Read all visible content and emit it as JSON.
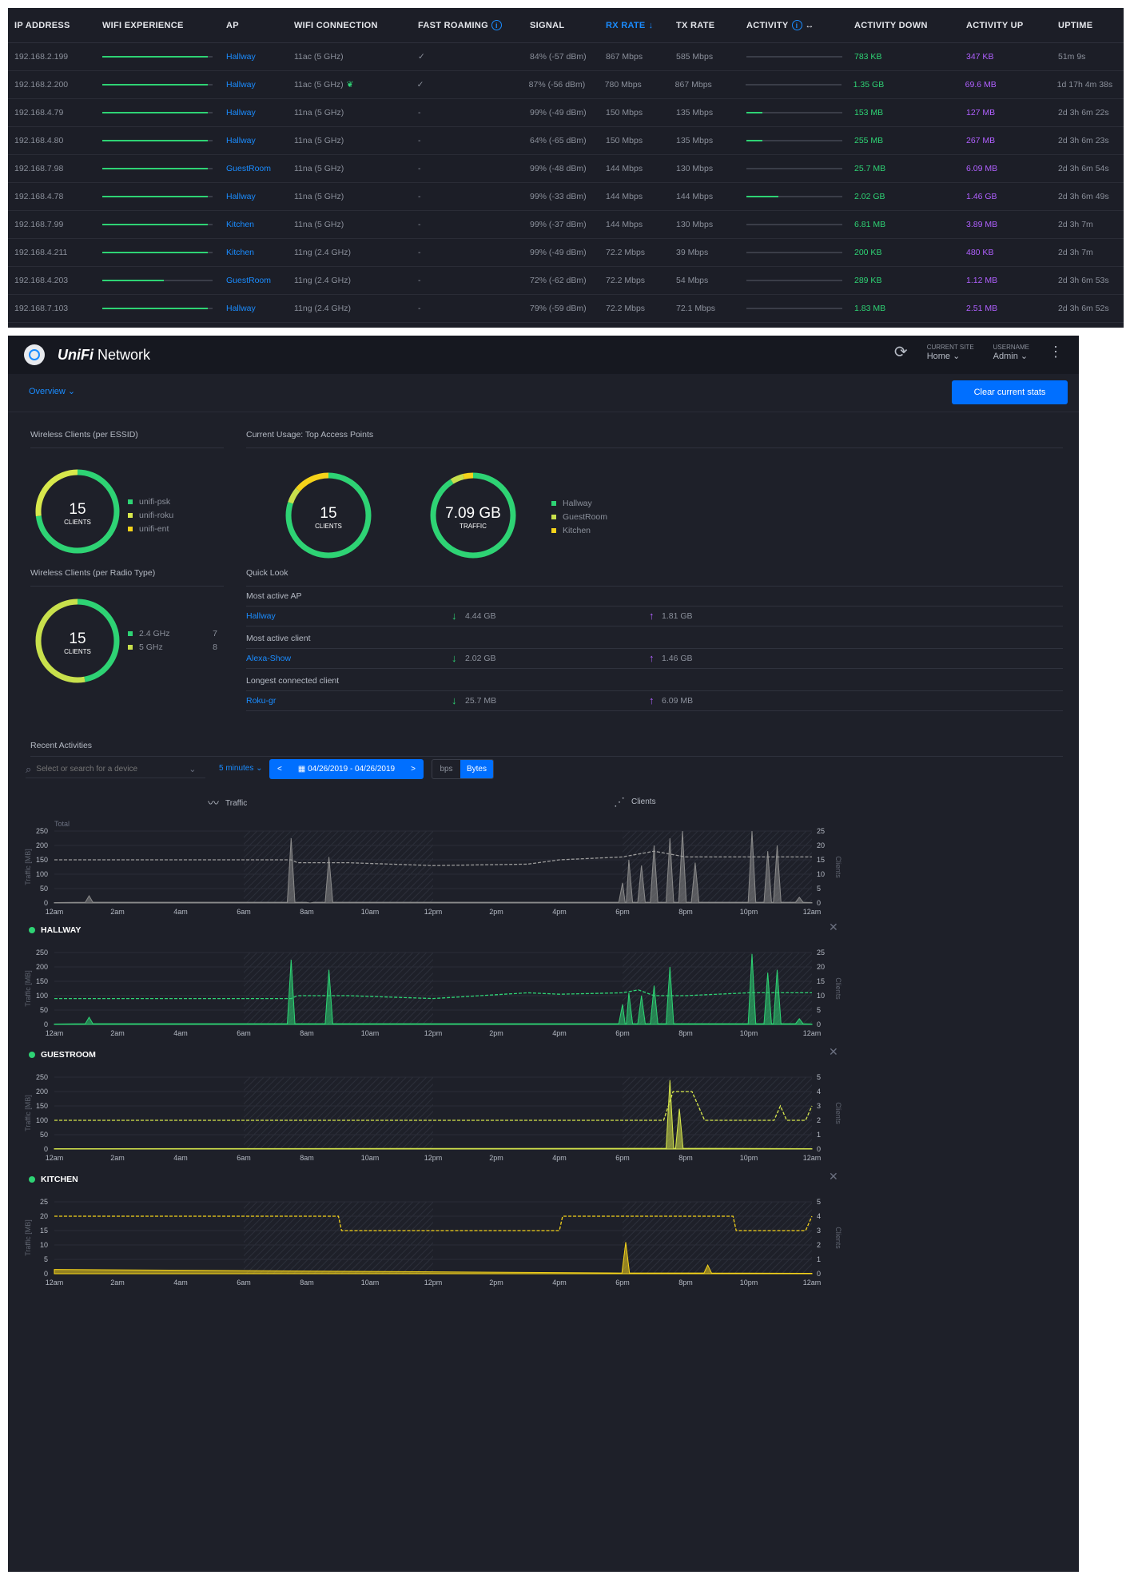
{
  "table": {
    "headers": {
      "ip": "IP ADDRESS",
      "exp": "WIFI EXPERIENCE",
      "ap": "AP",
      "con": "WIFI CONNECTION",
      "fr": "FAST ROAMING",
      "sig": "SIGNAL",
      "rx": "RX RATE",
      "tx": "TX RATE",
      "act": "ACTIVITY",
      "dn": "ACTIVITY DOWN",
      "up": "ACTIVITY UP",
      "upt": "UPTIME"
    },
    "rows": [
      {
        "ip": "192.168.2.199",
        "exp": 0.96,
        "ap": "Hallway",
        "con": "11ac (5 GHz)",
        "fr": "✓",
        "sig": "84% (-57 dBm)",
        "rx": "867 Mbps",
        "tx": "585 Mbps",
        "act": 0.0,
        "dn": "783 KB",
        "up": "347 KB",
        "upt": "51m 9s"
      },
      {
        "ip": "192.168.2.200",
        "exp": 0.96,
        "ap": "Hallway",
        "con": "11ac (5 GHz)",
        "fr": "✓",
        "sig": "87% (-56 dBm)",
        "rx": "780 Mbps",
        "tx": "867 Mbps",
        "act": 0.0,
        "dn": "1.35 GB",
        "up": "69.6 MB",
        "upt": "1d 17h 4m 38s"
      },
      {
        "ip": "192.168.4.79",
        "exp": 0.96,
        "ap": "Hallway",
        "con": "11na (5 GHz)",
        "fr": "-",
        "sig": "99% (-49 dBm)",
        "rx": "150 Mbps",
        "tx": "135 Mbps",
        "act": 0.17,
        "dn": "153 MB",
        "up": "127 MB",
        "upt": "2d 3h 6m 22s"
      },
      {
        "ip": "192.168.4.80",
        "exp": 0.96,
        "ap": "Hallway",
        "con": "11na (5 GHz)",
        "fr": "-",
        "sig": "64% (-65 dBm)",
        "rx": "150 Mbps",
        "tx": "135 Mbps",
        "act": 0.17,
        "dn": "255 MB",
        "up": "267 MB",
        "upt": "2d 3h 6m 23s"
      },
      {
        "ip": "192.168.7.98",
        "exp": 0.96,
        "ap": "GuestRoom",
        "con": "11na (5 GHz)",
        "fr": "-",
        "sig": "99% (-48 dBm)",
        "rx": "144 Mbps",
        "tx": "130 Mbps",
        "act": 0.0,
        "dn": "25.7 MB",
        "up": "6.09 MB",
        "upt": "2d 3h 6m 54s"
      },
      {
        "ip": "192.168.4.78",
        "exp": 0.96,
        "ap": "Hallway",
        "con": "11na (5 GHz)",
        "fr": "-",
        "sig": "99% (-33 dBm)",
        "rx": "144 Mbps",
        "tx": "144 Mbps",
        "act": 0.33,
        "dn": "2.02 GB",
        "up": "1.46 GB",
        "upt": "2d 3h 6m 49s"
      },
      {
        "ip": "192.168.7.99",
        "exp": 0.96,
        "ap": "Kitchen",
        "con": "11na (5 GHz)",
        "fr": "-",
        "sig": "99% (-37 dBm)",
        "rx": "144 Mbps",
        "tx": "130 Mbps",
        "act": 0.0,
        "dn": "6.81 MB",
        "up": "3.89 MB",
        "upt": "2d 3h 7m"
      },
      {
        "ip": "192.168.4.211",
        "exp": 0.96,
        "ap": "Kitchen",
        "con": "11ng (2.4 GHz)",
        "fr": "-",
        "sig": "99% (-49 dBm)",
        "rx": "72.2 Mbps",
        "tx": "39 Mbps",
        "act": 0.0,
        "dn": "200 KB",
        "up": "480 KB",
        "upt": "2d 3h 7m"
      },
      {
        "ip": "192.168.4.203",
        "exp": 0.56,
        "ap": "GuestRoom",
        "con": "11ng (2.4 GHz)",
        "fr": "-",
        "sig": "72% (-62 dBm)",
        "rx": "72.2 Mbps",
        "tx": "54 Mbps",
        "act": 0.0,
        "dn": "289 KB",
        "up": "1.12 MB",
        "upt": "2d 3h 6m 53s"
      },
      {
        "ip": "192.168.7.103",
        "exp": 0.96,
        "ap": "Hallway",
        "con": "11ng (2.4 GHz)",
        "fr": "-",
        "sig": "79% (-59 dBm)",
        "rx": "72.2 Mbps",
        "tx": "72.1 Mbps",
        "act": 0.0,
        "dn": "1.83 MB",
        "up": "2.51 MB",
        "upt": "2d 3h 6m 52s"
      }
    ]
  },
  "app": {
    "brand_bold": "UniFi",
    "brand_rest": " Network",
    "site_label": "CURRENT SITE",
    "site_value": "Home",
    "user_label": "USERNAME",
    "user_value": "Admin",
    "overview": "Overview",
    "clear_button": "Clear current stats"
  },
  "sections": {
    "essid_title": "Wireless Clients (per ESSID)",
    "usage_title": "Current Usage: Top Access Points",
    "radio_title": "Wireless Clients (per Radio Type)",
    "quick_title": "Quick Look"
  },
  "donuts": {
    "essid": {
      "num": "15",
      "label": "CLIENTS",
      "segments": [
        0.73,
        0.27
      ],
      "colors": [
        "#2ed374",
        "#d8e84c"
      ]
    },
    "ap_clients": {
      "num": "15",
      "label": "CLIENTS",
      "segments": [
        0.8,
        0.06,
        0.14
      ],
      "colors": [
        "#2ed374",
        "#c8e04c",
        "#f5d31a"
      ]
    },
    "traffic": {
      "num": "7.09 GB",
      "label": "TRAFFIC",
      "segments": [
        0.91,
        0.05,
        0.04
      ],
      "colors": [
        "#2ed374",
        "#c8e04c",
        "#f5d31a"
      ]
    },
    "radio": {
      "num": "15",
      "label": "CLIENTS",
      "segments": [
        0.47,
        0.53
      ],
      "colors": [
        "#2ed374",
        "#c8e04c"
      ]
    }
  },
  "legends": {
    "essid": [
      {
        "label": "unifi-psk",
        "color": "#2ed374"
      },
      {
        "label": "unifi-roku",
        "color": "#d8e84c"
      },
      {
        "label": "unifi-ent",
        "color": "#f5d31a"
      }
    ],
    "ap": [
      {
        "label": "Hallway",
        "color": "#2ed374"
      },
      {
        "label": "GuestRoom",
        "color": "#c8e04c"
      },
      {
        "label": "Kitchen",
        "color": "#f5d31a"
      }
    ],
    "radio": [
      {
        "label": "2.4 GHz",
        "value": "7",
        "color": "#2ed374"
      },
      {
        "label": "5 GHz",
        "value": "8",
        "color": "#c8e04c"
      }
    ]
  },
  "quick": [
    {
      "title": "Most active AP",
      "name": "Hallway",
      "down": "4.44 GB",
      "up": "1.81 GB"
    },
    {
      "title": "Most active client",
      "name": "Alexa-Show",
      "down": "2.02 GB",
      "up": "1.46 GB"
    },
    {
      "title": "Longest connected client",
      "name": "Roku-gr",
      "down": "25.7 MB",
      "up": "6.09 MB"
    }
  ],
  "recent": {
    "title": "Recent Activities",
    "search_placeholder": "Select or search for a device",
    "interval": "5 minutes",
    "date_range": "04/26/2019 - 04/26/2019",
    "prev": "<",
    "next": ">",
    "unit_bps": "bps",
    "unit_bytes": "Bytes",
    "tab_traffic": "Traffic",
    "tab_clients": "Clients"
  },
  "chart_data": [
    {
      "type": "area",
      "title": "Total",
      "ylabel": "Traffic [MB]",
      "y2label": "Clients",
      "x": [
        "12am",
        "2am",
        "4am",
        "6am",
        "8am",
        "10am",
        "12pm",
        "2pm",
        "4pm",
        "6pm",
        "8pm",
        "10pm",
        "12am"
      ],
      "ylim": [
        0,
        250
      ],
      "yticks": [
        0,
        50,
        100,
        150,
        200,
        250
      ],
      "y2lim": [
        0,
        25
      ],
      "y2ticks": [
        0,
        5,
        10,
        15,
        20,
        25
      ],
      "color": "#8b8b8b",
      "traffic_peaks": [
        [
          1.1,
          25
        ],
        [
          7.5,
          225
        ],
        [
          8.1,
          0
        ],
        [
          8.7,
          160
        ],
        [
          18,
          70
        ],
        [
          18.2,
          150
        ],
        [
          18.6,
          130
        ],
        [
          19,
          200
        ],
        [
          19.5,
          225
        ],
        [
          19.9,
          250
        ],
        [
          20.3,
          140
        ],
        [
          22.1,
          250
        ],
        [
          22.6,
          180
        ],
        [
          22.9,
          200
        ],
        [
          23.6,
          20
        ]
      ],
      "clients": [
        [
          0,
          15
        ],
        [
          7.5,
          15
        ],
        [
          7.7,
          14
        ],
        [
          9.3,
          14
        ],
        [
          12,
          13
        ],
        [
          15,
          13.5
        ],
        [
          16,
          15
        ],
        [
          18,
          16
        ],
        [
          18.5,
          17
        ],
        [
          19,
          18
        ],
        [
          20,
          16
        ],
        [
          22,
          16
        ],
        [
          24,
          16
        ]
      ]
    },
    {
      "type": "area",
      "title": "HALLWAY",
      "ylabel": "Traffic [MB]",
      "y2label": "Clients",
      "x": [
        "12am",
        "2am",
        "4am",
        "6am",
        "8am",
        "10am",
        "12pm",
        "2pm",
        "4pm",
        "6pm",
        "8pm",
        "10pm",
        "12am"
      ],
      "ylim": [
        0,
        250
      ],
      "yticks": [
        0,
        50,
        100,
        150,
        200,
        250
      ],
      "y2lim": [
        0,
        25
      ],
      "y2ticks": [
        0,
        5,
        10,
        15,
        20,
        25
      ],
      "color": "#2ed374",
      "traffic_peaks": [
        [
          1.1,
          25
        ],
        [
          7.5,
          225
        ],
        [
          8.7,
          190
        ],
        [
          18,
          70
        ],
        [
          18.2,
          110
        ],
        [
          18.6,
          100
        ],
        [
          19,
          135
        ],
        [
          19.5,
          200
        ],
        [
          22.1,
          245
        ],
        [
          22.6,
          180
        ],
        [
          22.9,
          190
        ],
        [
          23.6,
          20
        ]
      ],
      "clients": [
        [
          0,
          9
        ],
        [
          7.5,
          9
        ],
        [
          7.7,
          10
        ],
        [
          9.3,
          10
        ],
        [
          12,
          9
        ],
        [
          15,
          11
        ],
        [
          16,
          10.5
        ],
        [
          18,
          11
        ],
        [
          18.5,
          12
        ],
        [
          19,
          10
        ],
        [
          20,
          10
        ],
        [
          22,
          11
        ],
        [
          24,
          11
        ]
      ]
    },
    {
      "type": "area",
      "title": "GUESTROOM",
      "ylabel": "Traffic [MB]",
      "y2label": "Clients",
      "x": [
        "12am",
        "2am",
        "4am",
        "6am",
        "8am",
        "10am",
        "12pm",
        "2pm",
        "4pm",
        "6pm",
        "8pm",
        "10pm",
        "12am"
      ],
      "ylim": [
        0,
        250
      ],
      "yticks": [
        0,
        50,
        100,
        150,
        200,
        250
      ],
      "y2lim": [
        0,
        5
      ],
      "y2ticks": [
        0,
        1,
        2,
        3,
        4,
        5
      ],
      "color": "#d8e84c",
      "traffic_peaks": [
        [
          19.5,
          240
        ],
        [
          19.8,
          140
        ]
      ],
      "clients": [
        [
          0,
          2
        ],
        [
          19.3,
          2
        ],
        [
          19.6,
          4
        ],
        [
          20.2,
          4
        ],
        [
          20.4,
          3
        ],
        [
          20.6,
          2
        ],
        [
          22.8,
          2
        ],
        [
          23,
          3
        ],
        [
          23.2,
          2
        ],
        [
          23.8,
          2
        ],
        [
          24,
          3
        ]
      ]
    },
    {
      "type": "area",
      "title": "KITCHEN",
      "ylabel": "Traffic [MB]",
      "y2label": "Clients",
      "x": [
        "12am",
        "2am",
        "4am",
        "6am",
        "8am",
        "10am",
        "12pm",
        "2pm",
        "4pm",
        "6pm",
        "8pm",
        "10pm",
        "12am"
      ],
      "ylim": [
        0,
        25
      ],
      "yticks": [
        0,
        5,
        10,
        15,
        20,
        25
      ],
      "y2lim": [
        0,
        5
      ],
      "y2ticks": [
        0,
        1,
        2,
        3,
        4,
        5
      ],
      "color": "#f5d31a",
      "traffic_peaks": [
        [
          18.1,
          11
        ],
        [
          20.7,
          3
        ]
      ],
      "clients": [
        [
          0,
          4
        ],
        [
          9,
          4
        ],
        [
          9.1,
          3
        ],
        [
          16,
          3
        ],
        [
          16.1,
          4
        ],
        [
          21.5,
          4
        ],
        [
          21.6,
          3
        ],
        [
          23.8,
          3
        ],
        [
          24,
          4
        ]
      ]
    }
  ]
}
